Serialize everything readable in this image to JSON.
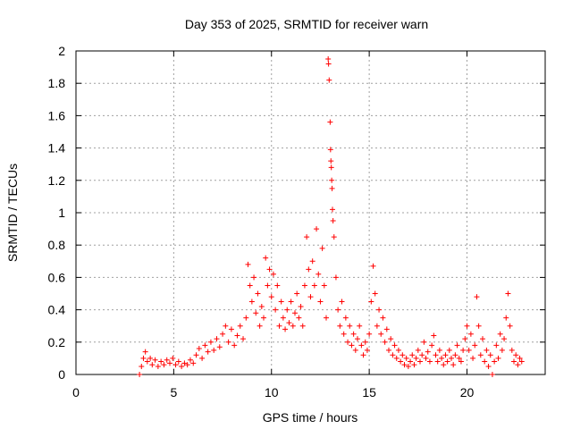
{
  "chart_data": {
    "type": "scatter",
    "title": "Day 353 of 2025, SRMTID for receiver warn",
    "xlabel": "GPS time / hours",
    "ylabel": "SRMTID / TECUs",
    "xlim": [
      0,
      24
    ],
    "ylim": [
      0,
      2
    ],
    "xticks": [
      0,
      5,
      10,
      15,
      20
    ],
    "xtick_labels": [
      "0",
      "5",
      "10",
      "15",
      "20"
    ],
    "yticks": [
      0,
      0.2,
      0.4,
      0.6,
      0.8,
      1.0,
      1.2,
      1.4,
      1.6,
      1.8,
      2.0
    ],
    "ytick_labels": [
      "0",
      "0.2",
      "0.4",
      "0.6",
      "0.8",
      "1",
      "1.2",
      "1.4",
      "1.6",
      "1.8",
      "2"
    ],
    "grid": true,
    "marker": "+",
    "color": "#ff0000",
    "series": [
      {
        "name": "SRMTID",
        "points": [
          [
            3.25,
            0.0
          ],
          [
            3.35,
            0.05
          ],
          [
            3.45,
            0.1
          ],
          [
            3.55,
            0.14
          ],
          [
            3.65,
            0.08
          ],
          [
            3.8,
            0.1
          ],
          [
            3.9,
            0.06
          ],
          [
            4.05,
            0.09
          ],
          [
            4.2,
            0.05
          ],
          [
            4.35,
            0.08
          ],
          [
            4.5,
            0.06
          ],
          [
            4.65,
            0.09
          ],
          [
            4.8,
            0.07
          ],
          [
            4.95,
            0.1
          ],
          [
            5.1,
            0.06
          ],
          [
            5.25,
            0.08
          ],
          [
            5.4,
            0.05
          ],
          [
            5.55,
            0.07
          ],
          [
            5.7,
            0.06
          ],
          [
            5.85,
            0.09
          ],
          [
            6.0,
            0.07
          ],
          [
            6.15,
            0.12
          ],
          [
            6.3,
            0.16
          ],
          [
            6.45,
            0.1
          ],
          [
            6.6,
            0.18
          ],
          [
            6.75,
            0.14
          ],
          [
            6.9,
            0.2
          ],
          [
            7.05,
            0.15
          ],
          [
            7.2,
            0.22
          ],
          [
            7.35,
            0.17
          ],
          [
            7.5,
            0.25
          ],
          [
            7.65,
            0.3
          ],
          [
            7.8,
            0.2
          ],
          [
            7.95,
            0.28
          ],
          [
            8.1,
            0.18
          ],
          [
            8.25,
            0.24
          ],
          [
            8.4,
            0.3
          ],
          [
            8.55,
            0.22
          ],
          [
            8.7,
            0.35
          ],
          [
            8.8,
            0.68
          ],
          [
            8.9,
            0.55
          ],
          [
            9.0,
            0.45
          ],
          [
            9.1,
            0.6
          ],
          [
            9.2,
            0.38
          ],
          [
            9.3,
            0.5
          ],
          [
            9.4,
            0.3
          ],
          [
            9.5,
            0.42
          ],
          [
            9.6,
            0.35
          ],
          [
            9.7,
            0.72
          ],
          [
            9.8,
            0.55
          ],
          [
            9.9,
            0.65
          ],
          [
            10.0,
            0.48
          ],
          [
            10.1,
            0.62
          ],
          [
            10.2,
            0.4
          ],
          [
            10.3,
            0.55
          ],
          [
            10.4,
            0.3
          ],
          [
            10.5,
            0.45
          ],
          [
            10.6,
            0.35
          ],
          [
            10.7,
            0.28
          ],
          [
            10.8,
            0.4
          ],
          [
            10.9,
            0.32
          ],
          [
            11.0,
            0.45
          ],
          [
            11.1,
            0.3
          ],
          [
            11.2,
            0.38
          ],
          [
            11.3,
            0.5
          ],
          [
            11.4,
            0.35
          ],
          [
            11.5,
            0.42
          ],
          [
            11.6,
            0.3
          ],
          [
            11.7,
            0.55
          ],
          [
            11.8,
            0.85
          ],
          [
            11.9,
            0.65
          ],
          [
            12.0,
            0.48
          ],
          [
            12.1,
            0.7
          ],
          [
            12.2,
            0.55
          ],
          [
            12.3,
            0.9
          ],
          [
            12.4,
            0.62
          ],
          [
            12.5,
            0.45
          ],
          [
            12.6,
            0.78
          ],
          [
            12.7,
            0.55
          ],
          [
            12.8,
            0.35
          ],
          [
            12.9,
            1.95
          ],
          [
            12.92,
            1.92
          ],
          [
            12.95,
            1.82
          ],
          [
            13.0,
            1.56
          ],
          [
            13.02,
            1.39
          ],
          [
            13.04,
            1.32
          ],
          [
            13.06,
            1.28
          ],
          [
            13.08,
            1.2
          ],
          [
            13.1,
            1.15
          ],
          [
            13.12,
            1.02
          ],
          [
            13.15,
            0.95
          ],
          [
            13.2,
            0.85
          ],
          [
            13.3,
            0.6
          ],
          [
            13.4,
            0.4
          ],
          [
            13.5,
            0.3
          ],
          [
            13.6,
            0.45
          ],
          [
            13.7,
            0.25
          ],
          [
            13.8,
            0.35
          ],
          [
            13.9,
            0.2
          ],
          [
            14.0,
            0.3
          ],
          [
            14.1,
            0.18
          ],
          [
            14.2,
            0.25
          ],
          [
            14.3,
            0.15
          ],
          [
            14.4,
            0.22
          ],
          [
            14.5,
            0.3
          ],
          [
            14.6,
            0.18
          ],
          [
            14.7,
            0.12
          ],
          [
            14.8,
            0.2
          ],
          [
            14.9,
            0.15
          ],
          [
            15.0,
            0.25
          ],
          [
            15.1,
            0.45
          ],
          [
            15.2,
            0.67
          ],
          [
            15.3,
            0.5
          ],
          [
            15.4,
            0.3
          ],
          [
            15.5,
            0.4
          ],
          [
            15.6,
            0.25
          ],
          [
            15.7,
            0.35
          ],
          [
            15.8,
            0.2
          ],
          [
            15.9,
            0.28
          ],
          [
            16.0,
            0.15
          ],
          [
            16.1,
            0.22
          ],
          [
            16.2,
            0.12
          ],
          [
            16.3,
            0.18
          ],
          [
            16.4,
            0.1
          ],
          [
            16.5,
            0.15
          ],
          [
            16.6,
            0.08
          ],
          [
            16.7,
            0.12
          ],
          [
            16.8,
            0.06
          ],
          [
            16.9,
            0.1
          ],
          [
            17.0,
            0.05
          ],
          [
            17.1,
            0.08
          ],
          [
            17.2,
            0.12
          ],
          [
            17.3,
            0.06
          ],
          [
            17.4,
            0.1
          ],
          [
            17.5,
            0.15
          ],
          [
            17.6,
            0.08
          ],
          [
            17.7,
            0.12
          ],
          [
            17.8,
            0.2
          ],
          [
            17.9,
            0.1
          ],
          [
            18.0,
            0.14
          ],
          [
            18.1,
            0.08
          ],
          [
            18.2,
            0.18
          ],
          [
            18.3,
            0.24
          ],
          [
            18.4,
            0.12
          ],
          [
            18.5,
            0.08
          ],
          [
            18.6,
            0.15
          ],
          [
            18.7,
            0.1
          ],
          [
            18.8,
            0.06
          ],
          [
            18.9,
            0.12
          ],
          [
            19.0,
            0.08
          ],
          [
            19.1,
            0.15
          ],
          [
            19.2,
            0.1
          ],
          [
            19.3,
            0.06
          ],
          [
            19.4,
            0.12
          ],
          [
            19.5,
            0.18
          ],
          [
            19.6,
            0.1
          ],
          [
            19.7,
            0.08
          ],
          [
            19.8,
            0.15
          ],
          [
            19.9,
            0.22
          ],
          [
            20.0,
            0.3
          ],
          [
            20.1,
            0.15
          ],
          [
            20.2,
            0.25
          ],
          [
            20.3,
            0.1
          ],
          [
            20.4,
            0.18
          ],
          [
            20.5,
            0.48
          ],
          [
            20.6,
            0.3
          ],
          [
            20.7,
            0.12
          ],
          [
            20.8,
            0.22
          ],
          [
            20.9,
            0.08
          ],
          [
            21.0,
            0.15
          ],
          [
            21.1,
            0.05
          ],
          [
            21.2,
            0.12
          ],
          [
            21.3,
            0.0
          ],
          [
            21.4,
            0.08
          ],
          [
            21.5,
            0.18
          ],
          [
            21.6,
            0.1
          ],
          [
            21.7,
            0.25
          ],
          [
            21.8,
            0.15
          ],
          [
            21.9,
            0.22
          ],
          [
            22.0,
            0.35
          ],
          [
            22.1,
            0.5
          ],
          [
            22.2,
            0.3
          ],
          [
            22.3,
            0.15
          ],
          [
            22.4,
            0.08
          ],
          [
            22.5,
            0.12
          ],
          [
            22.6,
            0.06
          ],
          [
            22.7,
            0.1
          ],
          [
            22.8,
            0.08
          ]
        ]
      }
    ]
  }
}
